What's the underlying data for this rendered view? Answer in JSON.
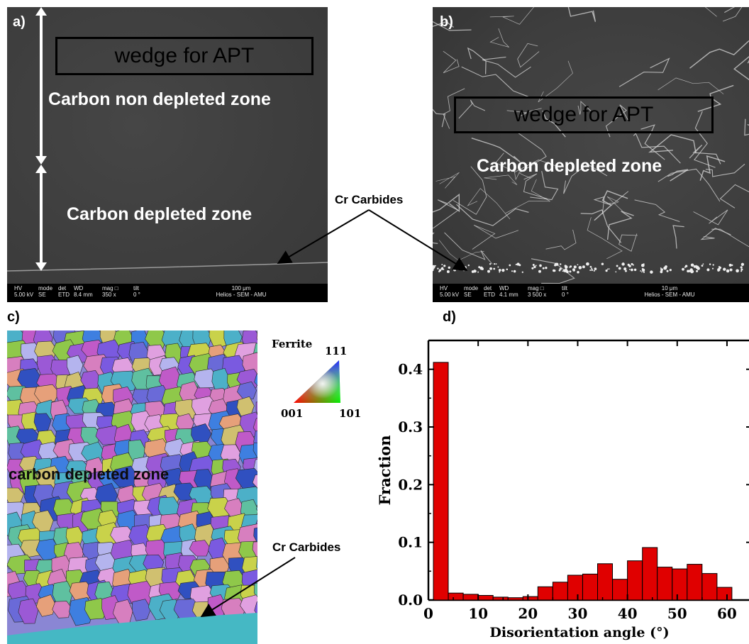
{
  "panels": {
    "a": {
      "letter": "a)",
      "wedge_label": "wedge for APT",
      "top_zone": "Carbon non depleted zone",
      "bottom_zone": "Carbon depleted zone",
      "databar": {
        "hv_head": "HV",
        "hv_val": "5.00 kV",
        "mode_head": "mode",
        "mode_val": "SE",
        "det_head": "det",
        "det_val": "ETD",
        "wd_head": "WD",
        "wd_val": "8.4 mm",
        "mag_head": "mag □",
        "mag_val": "350 x",
        "tilt_head": "tilt",
        "tilt_val": "0 °",
        "scale": "100 μm",
        "instrument": "Helios - SEM - AMU"
      }
    },
    "b": {
      "letter": "b)",
      "wedge_label": "wedge for APT",
      "zone": "Carbon depleted zone",
      "databar": {
        "hv_head": "HV",
        "hv_val": "5.00 kV",
        "mode_head": "mode",
        "mode_val": "SE",
        "det_head": "det",
        "det_val": "ETD",
        "wd_head": "WD",
        "wd_val": "4.1 mm",
        "mag_head": "mag □",
        "mag_val": "3 500 x",
        "tilt_head": "tilt",
        "tilt_val": "0 °",
        "scale": "10 μm",
        "instrument": "Helios - SEM - AMU"
      }
    },
    "cr_carbides_top": "Cr Carbides",
    "c": {
      "letter": "c)",
      "zone": "carbon depleted zone",
      "cr_carbides": "Cr Carbides",
      "legend": {
        "title": "Ferrite",
        "v111": "111",
        "v001": "001",
        "v101": "101"
      }
    },
    "d": {
      "letter": "d)"
    }
  },
  "chart_data": {
    "type": "bar",
    "xlabel": "Disorientation angle (°)",
    "ylabel": "Fraction",
    "xlim": [
      0,
      63
    ],
    "ylim": [
      0,
      0.45
    ],
    "xticks": [
      "0",
      "10",
      "20",
      "30",
      "40",
      "50",
      "60"
    ],
    "yticks": [
      "0.0",
      "0.1",
      "0.2",
      "0.3",
      "0.4"
    ],
    "bar_color": "#e00000",
    "x": [
      2.5,
      5.5,
      8.5,
      11.5,
      14.5,
      17.5,
      20.5,
      23.5,
      26.5,
      29.5,
      32.5,
      35.5,
      38.5,
      41.5,
      44.5,
      47.5,
      50.5,
      53.5,
      56.5,
      59.5,
      62.5
    ],
    "values": [
      0.412,
      0.012,
      0.01,
      0.008,
      0.005,
      0.004,
      0.006,
      0.023,
      0.031,
      0.043,
      0.045,
      0.063,
      0.036,
      0.068,
      0.091,
      0.057,
      0.054,
      0.062,
      0.046,
      0.022,
      0.0
    ]
  }
}
